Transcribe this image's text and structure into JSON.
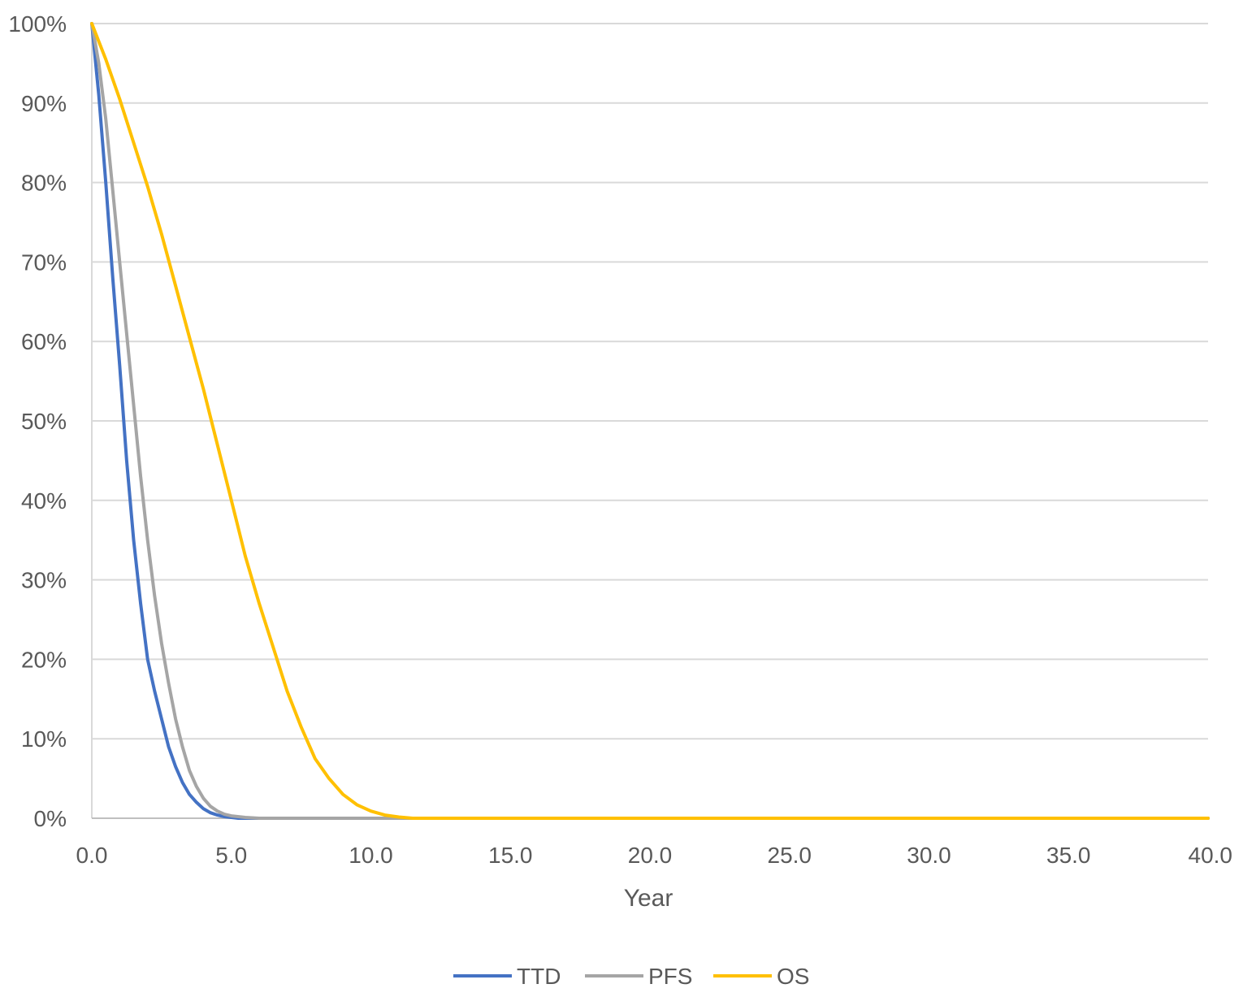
{
  "chart_data": {
    "type": "line",
    "title": "",
    "xlabel": "Year",
    "ylabel": "",
    "xlim": [
      0,
      40
    ],
    "ylim": [
      0,
      100
    ],
    "x_ticks": [
      "0.0",
      "5.0",
      "10.0",
      "15.0",
      "20.0",
      "25.0",
      "30.0",
      "35.0",
      "40.0"
    ],
    "y_ticks": [
      "0%",
      "10%",
      "20%",
      "30%",
      "40%",
      "50%",
      "60%",
      "70%",
      "80%",
      "90%",
      "100%"
    ],
    "grid": "horizontal",
    "legend_position": "bottom",
    "series": [
      {
        "name": "TTD",
        "color": "#4472C4",
        "x": [
          0,
          0.25,
          0.5,
          0.75,
          1.0,
          1.25,
          1.5,
          1.75,
          2.0,
          2.25,
          2.5,
          2.75,
          3.0,
          3.25,
          3.5,
          3.75,
          4.0,
          4.25,
          4.5,
          4.75,
          5.0,
          5.25,
          40
        ],
        "y": [
          100,
          91,
          80,
          68,
          57,
          45,
          35,
          27,
          20,
          16,
          12.5,
          9,
          6.5,
          4.5,
          3,
          2,
          1.2,
          0.7,
          0.4,
          0.2,
          0.1,
          0,
          0
        ]
      },
      {
        "name": "PFS",
        "color": "#A5A5A5",
        "x": [
          0,
          0.25,
          0.5,
          0.75,
          1.0,
          1.25,
          1.5,
          1.75,
          2.0,
          2.25,
          2.5,
          2.75,
          3.0,
          3.25,
          3.5,
          3.75,
          4.0,
          4.25,
          4.5,
          4.75,
          5.0,
          5.5,
          6.0,
          40
        ],
        "y": [
          100,
          95,
          88,
          79,
          70,
          61,
          52,
          43,
          35,
          28,
          22,
          17,
          12.5,
          9,
          6,
          4,
          2.5,
          1.5,
          0.9,
          0.5,
          0.3,
          0.1,
          0,
          0
        ]
      },
      {
        "name": "OS",
        "color": "#FFC000",
        "x": [
          0,
          0.5,
          1.0,
          1.5,
          2.0,
          2.5,
          3.0,
          3.5,
          4.0,
          4.5,
          5.0,
          5.5,
          6.0,
          6.5,
          7.0,
          7.5,
          8.0,
          8.5,
          9.0,
          9.5,
          10.0,
          10.5,
          11.0,
          11.5,
          40
        ],
        "y": [
          100,
          95.5,
          90.5,
          85,
          79.5,
          73.5,
          67,
          60.5,
          54,
          47,
          40,
          33,
          27,
          21.5,
          16,
          11.5,
          7.5,
          5,
          3,
          1.7,
          0.9,
          0.4,
          0.15,
          0,
          0
        ]
      }
    ]
  }
}
